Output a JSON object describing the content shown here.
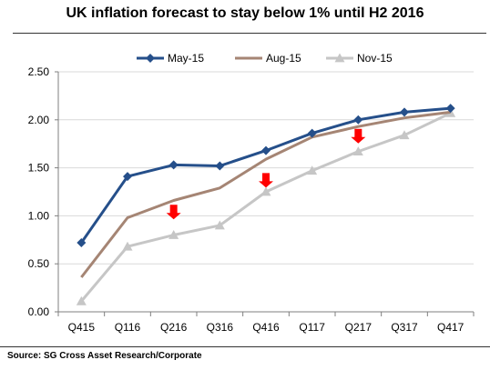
{
  "page": {
    "title": "UK inflation forecast to stay below 1% until H2 2016",
    "source": "Source: SG Cross Asset Research/Corporate"
  },
  "chart_data": {
    "type": "line",
    "title": "UK inflation forecast to stay below 1% until H2 2016",
    "xlabel": "",
    "ylabel": "",
    "categories": [
      "Q415",
      "Q116",
      "Q216",
      "Q316",
      "Q416",
      "Q117",
      "Q217",
      "Q317",
      "Q417"
    ],
    "ylim": [
      0,
      2.5
    ],
    "yticks": [
      "0.00",
      "0.50",
      "1.00",
      "1.50",
      "2.00",
      "2.50"
    ],
    "grid": true,
    "legend_position": "top",
    "series": [
      {
        "name": "May-15",
        "color": "#254f8a",
        "marker": "diamond",
        "values": [
          0.72,
          1.41,
          1.53,
          1.52,
          1.68,
          1.86,
          2.0,
          2.08,
          2.12
        ]
      },
      {
        "name": "Aug-15",
        "color": "#a58574",
        "marker": "none",
        "values": [
          0.36,
          0.98,
          1.16,
          1.29,
          1.59,
          1.82,
          1.93,
          2.02,
          2.08
        ]
      },
      {
        "name": "Nov-15",
        "color": "#c6c6c6",
        "marker": "triangle",
        "values": [
          0.11,
          0.68,
          0.8,
          0.9,
          1.25,
          1.47,
          1.67,
          1.84,
          2.07
        ]
      }
    ],
    "annotations": [
      {
        "type": "down-arrow",
        "color": "#ff0000",
        "category": "Q216",
        "value": 1.03
      },
      {
        "type": "down-arrow",
        "color": "#ff0000",
        "category": "Q416",
        "value": 1.36
      },
      {
        "type": "down-arrow",
        "color": "#ff0000",
        "category": "Q217",
        "value": 1.82
      }
    ]
  }
}
